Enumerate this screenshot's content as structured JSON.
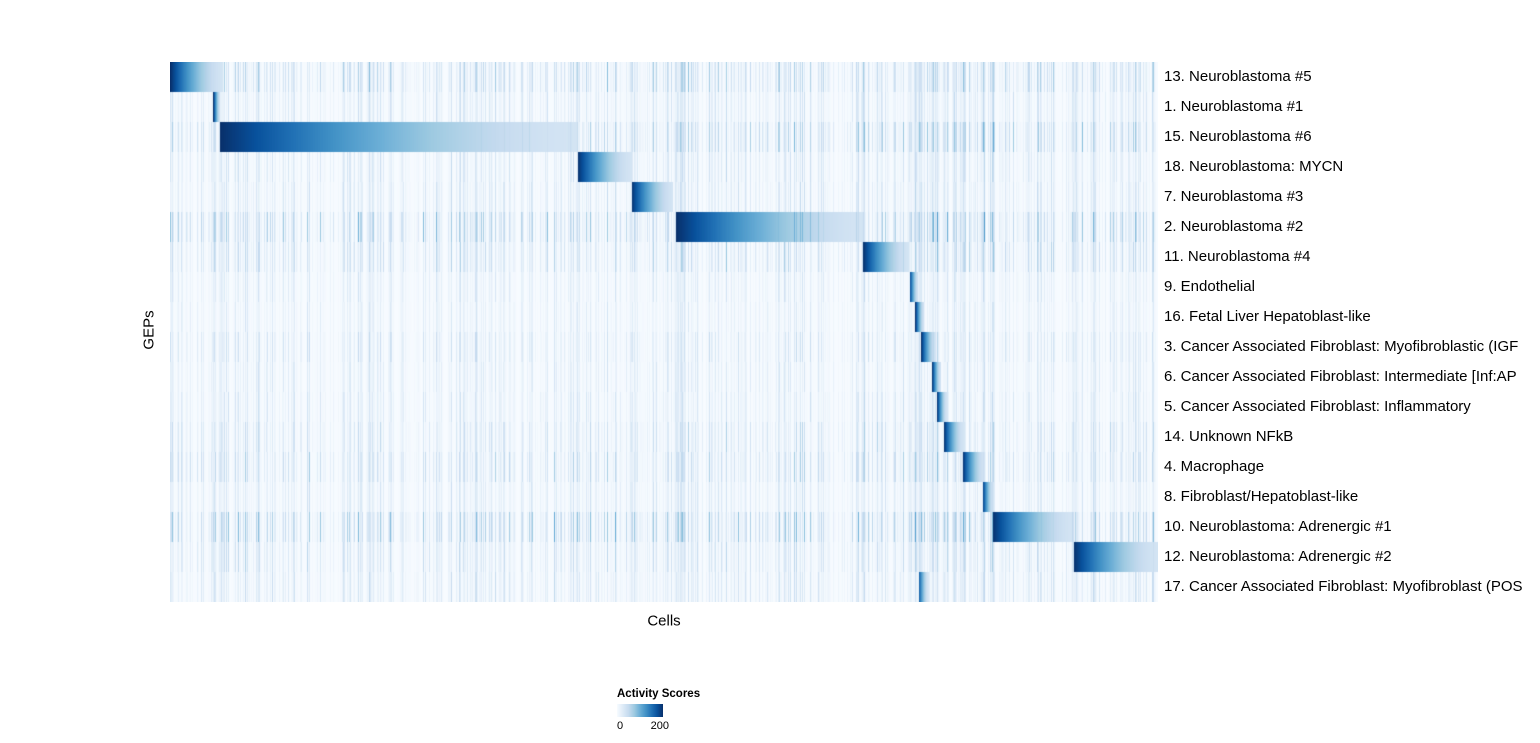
{
  "figure": {
    "xlabel": "Cells",
    "ylabel": "GEPs"
  },
  "legend": {
    "title": "Activity Scores",
    "tick_min": "0",
    "tick_max": "200"
  },
  "chart_data": {
    "type": "heatmap",
    "xlabel": "Cells",
    "ylabel": "GEPs",
    "colorbar": {
      "title": "Activity Scores",
      "min": 0,
      "max": 200,
      "ticks": [
        0,
        200
      ]
    },
    "colormap": [
      "#f7fbff",
      "#deebf7",
      "#c6dbef",
      "#9ecae1",
      "#6baed6",
      "#4292c6",
      "#2171b5",
      "#08519c",
      "#08306b"
    ],
    "value_range": [
      0,
      200
    ],
    "rows": [
      {
        "label": "13. Neuroblastoma #5",
        "block_start": 0.0,
        "block_end": 0.053,
        "peak": 200,
        "noise": 0.8
      },
      {
        "label": "1. Neuroblastoma #1",
        "block_start": 0.0435,
        "block_end": 0.0506,
        "peak": 200,
        "noise": 0.5
      },
      {
        "label": "15. Neuroblastoma #6",
        "block_start": 0.0506,
        "block_end": 0.412,
        "peak": 200,
        "noise": 0.9
      },
      {
        "label": "18. Neuroblastoma: MYCN",
        "block_start": 0.412,
        "block_end": 0.4666,
        "peak": 200,
        "noise": 0.5
      },
      {
        "label": "7. Neuroblastoma #3",
        "block_start": 0.4666,
        "block_end": 0.509,
        "peak": 200,
        "noise": 0.5
      },
      {
        "label": "2. Neuroblastoma #2",
        "block_start": 0.512,
        "block_end": 0.701,
        "peak": 200,
        "noise": 1.0
      },
      {
        "label": "11. Neuroblastoma #4",
        "block_start": 0.701,
        "block_end": 0.747,
        "peak": 200,
        "noise": 0.7
      },
      {
        "label": "9. Endothelial",
        "block_start": 0.748,
        "block_end": 0.757,
        "peak": 200,
        "noise": 0.4
      },
      {
        "label": "16. Fetal Liver Hepatoblast-like",
        "block_start": 0.754,
        "block_end": 0.763,
        "peak": 200,
        "noise": 0.35
      },
      {
        "label": "3. Cancer Associated Fibroblast: Myofibroblastic (IGF",
        "block_start": 0.76,
        "block_end": 0.775,
        "peak": 200,
        "noise": 0.5
      },
      {
        "label": "6. Cancer Associated Fibroblast: Intermediate [Inf:AP",
        "block_start": 0.771,
        "block_end": 0.78,
        "peak": 200,
        "noise": 0.4
      },
      {
        "label": "5. Cancer Associated Fibroblast: Inflammatory",
        "block_start": 0.776,
        "block_end": 0.786,
        "peak": 200,
        "noise": 0.45
      },
      {
        "label": "14. Unknown NFkB",
        "block_start": 0.783,
        "block_end": 0.803,
        "peak": 200,
        "noise": 0.6
      },
      {
        "label": "4. Macrophage",
        "block_start": 0.802,
        "block_end": 0.824,
        "peak": 200,
        "noise": 0.7
      },
      {
        "label": "8. Fibroblast/Hepatoblast-like",
        "block_start": 0.822,
        "block_end": 0.833,
        "peak": 200,
        "noise": 0.45
      },
      {
        "label": "10. Neuroblastoma: Adrenergic #1",
        "block_start": 0.832,
        "block_end": 0.914,
        "peak": 200,
        "noise": 1.0
      },
      {
        "label": "12. Neuroblastoma: Adrenergic #2",
        "block_start": 0.914,
        "block_end": 1.0,
        "peak": 200,
        "noise": 0.6
      },
      {
        "label": "17. Cancer Associated Fibroblast: Myofibroblast (POS",
        "block_start": 0.758,
        "block_end": 0.768,
        "peak": 160,
        "noise": 0.5
      }
    ]
  }
}
